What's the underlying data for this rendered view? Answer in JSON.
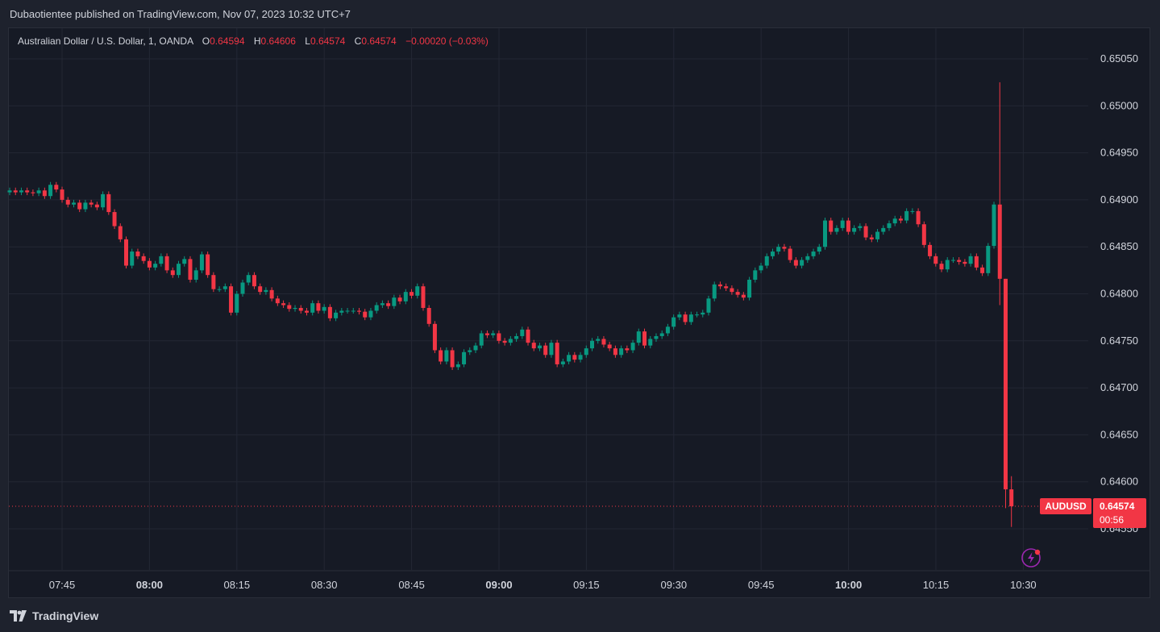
{
  "header": {
    "published_line": "Dubaotientee published on TradingView.com, Nov 07, 2023 10:32 UTC+7"
  },
  "legend": {
    "symbol_line": "Australian Dollar / U.S. Dollar, 1, OANDA",
    "o_label": "O",
    "o_value": "0.64594",
    "h_label": "H",
    "h_value": "0.64606",
    "l_label": "L",
    "l_value": "0.64574",
    "c_label": "C",
    "c_value": "0.64574",
    "change": "−0.00020 (−0.03%)"
  },
  "footer": {
    "brand": "TradingView"
  },
  "colors": {
    "up": "#089981",
    "down": "#f23645",
    "grid": "#232734",
    "axis_text": "#d1d4dc",
    "background": "#161a25"
  },
  "price_badge": {
    "symbol": "AUDUSD",
    "price": "0.64574",
    "countdown": "00:56"
  },
  "chart_data": {
    "type": "candlestick",
    "symbol": "AUDUSD",
    "interval": "1",
    "y_ticks": [
      "0.65050",
      "0.65000",
      "0.64950",
      "0.64900",
      "0.64850",
      "0.64800",
      "0.64750",
      "0.64700",
      "0.64650",
      "0.64600",
      "0.64550"
    ],
    "x_ticks": [
      {
        "label": "07:45",
        "bold": false
      },
      {
        "label": "08:00",
        "bold": true
      },
      {
        "label": "08:15",
        "bold": false
      },
      {
        "label": "08:30",
        "bold": false
      },
      {
        "label": "08:45",
        "bold": false
      },
      {
        "label": "09:00",
        "bold": true
      },
      {
        "label": "09:15",
        "bold": false
      },
      {
        "label": "09:30",
        "bold": false
      },
      {
        "label": "09:45",
        "bold": false
      },
      {
        "label": "10:00",
        "bold": true
      },
      {
        "label": "10:15",
        "bold": false
      },
      {
        "label": "10:30",
        "bold": false
      }
    ],
    "last_price": 0.64574,
    "closes": [
      0.6491,
      0.64908,
      0.6491,
      0.64908,
      0.64907,
      0.6491,
      0.64904,
      0.64916,
      0.64911,
      0.649,
      0.64895,
      0.64897,
      0.6489,
      0.64897,
      0.64895,
      0.64892,
      0.64906,
      0.64887,
      0.64872,
      0.64858,
      0.6483,
      0.64845,
      0.6484,
      0.64835,
      0.64828,
      0.64832,
      0.6484,
      0.64825,
      0.6482,
      0.64832,
      0.64837,
      0.64815,
      0.64825,
      0.64842,
      0.6482,
      0.64805,
      0.64805,
      0.64808,
      0.6478,
      0.648,
      0.64812,
      0.6482,
      0.64808,
      0.64802,
      0.64804,
      0.64795,
      0.6479,
      0.64788,
      0.64784,
      0.64785,
      0.64782,
      0.6478,
      0.6479,
      0.64782,
      0.64786,
      0.64774,
      0.6478,
      0.64782,
      0.64782,
      0.64782,
      0.64781,
      0.64775,
      0.64782,
      0.64788,
      0.6479,
      0.64787,
      0.64796,
      0.64792,
      0.64802,
      0.64798,
      0.64808,
      0.64785,
      0.64768,
      0.6474,
      0.64728,
      0.6474,
      0.64722,
      0.64725,
      0.64738,
      0.6474,
      0.64745,
      0.64758,
      0.64756,
      0.64758,
      0.6475,
      0.64748,
      0.64752,
      0.64755,
      0.64762,
      0.64748,
      0.64742,
      0.64745,
      0.64735,
      0.64748,
      0.64725,
      0.64728,
      0.64735,
      0.6473,
      0.64735,
      0.64742,
      0.6475,
      0.64752,
      0.64746,
      0.64742,
      0.64735,
      0.64742,
      0.6474,
      0.64748,
      0.6476,
      0.64745,
      0.64752,
      0.64755,
      0.64758,
      0.64765,
      0.64775,
      0.64778,
      0.6477,
      0.64778,
      0.64778,
      0.6478,
      0.64795,
      0.6481,
      0.64808,
      0.64806,
      0.64802,
      0.64799,
      0.64796,
      0.64815,
      0.64825,
      0.6483,
      0.6484,
      0.64845,
      0.6485,
      0.64848,
      0.64836,
      0.6483,
      0.64836,
      0.6484,
      0.64845,
      0.6485,
      0.64878,
      0.64866,
      0.6487,
      0.64878,
      0.64866,
      0.6487,
      0.64872,
      0.6486,
      0.64858,
      0.64866,
      0.6487,
      0.64875,
      0.6488,
      0.64878,
      0.64888,
      0.64888,
      0.64874,
      0.64852,
      0.6484,
      0.64832,
      0.64826,
      0.64836,
      0.64836,
      0.64834,
      0.64832,
      0.6484,
      0.64828,
      0.64822,
      0.64851,
      0.64895,
      0.64816,
      0.64592,
      0.64574
    ]
  }
}
